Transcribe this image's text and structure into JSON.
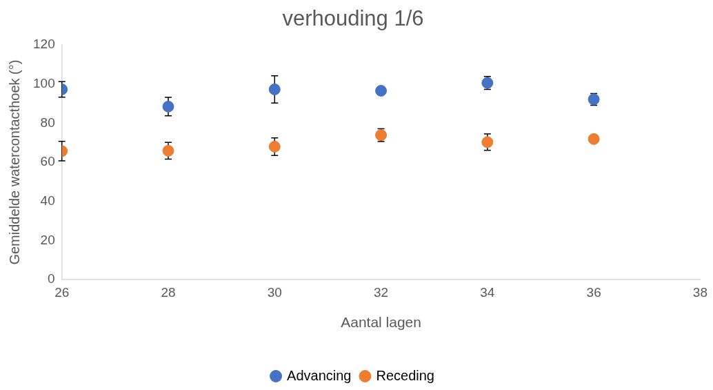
{
  "chart_data": {
    "type": "scatter",
    "title": "verhouding 1/6",
    "xlabel": "Aantal lagen",
    "ylabel": "Gemiddelde watercontacthoek (°)",
    "x": [
      26,
      28,
      30,
      32,
      34,
      36
    ],
    "series": [
      {
        "name": "Advancing",
        "color": "#4472c4",
        "values": [
          97.3,
          88.5,
          97.3,
          96.6,
          100.6,
          92.2
        ],
        "errors": [
          4,
          4.7,
          7,
          null,
          3.3,
          3
        ]
      },
      {
        "name": "Receding",
        "color": "#ed7d31",
        "values": [
          65.7,
          65.9,
          68,
          73.9,
          70.3,
          71.9
        ],
        "errors": [
          5,
          4.3,
          4.5,
          3.3,
          4.2,
          null
        ]
      }
    ],
    "xlim": [
      26,
      38
    ],
    "xticks": [
      26,
      28,
      30,
      32,
      34,
      36,
      38
    ],
    "ylim": [
      0,
      120
    ],
    "yticks": [
      0,
      20,
      40,
      60,
      80,
      100,
      120
    ],
    "grid": false,
    "legend": "bottom",
    "marker": "circle"
  }
}
